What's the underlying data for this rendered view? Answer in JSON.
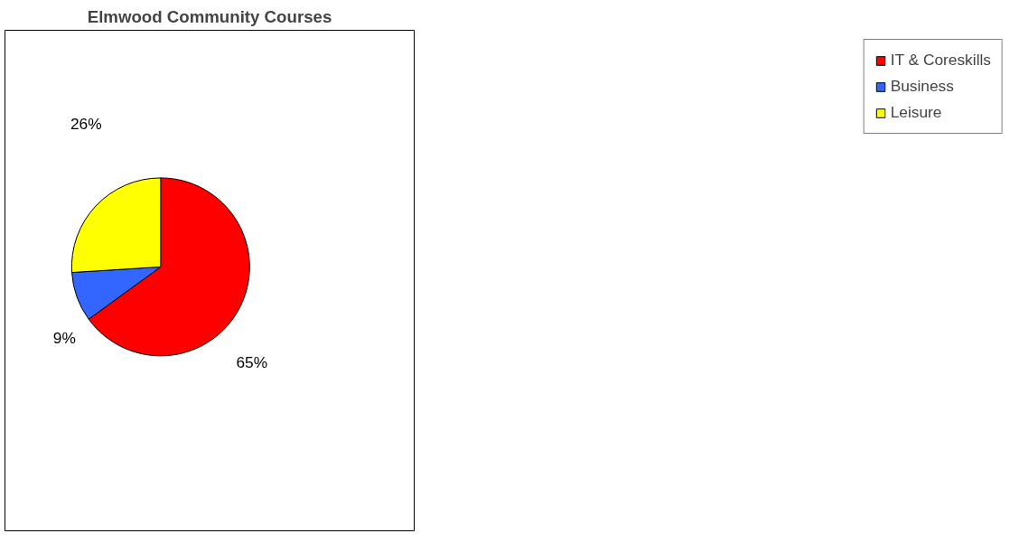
{
  "chart_data": {
    "type": "pie",
    "title": "Elmwood Community Courses",
    "categories": [
      "IT & Coreskills",
      "Business",
      "Leisure"
    ],
    "values": [
      65,
      9,
      26
    ],
    "colors": [
      "#ff0000",
      "#3366ff",
      "#ffff00"
    ],
    "value_labels": [
      "65%",
      "9%",
      "26%"
    ],
    "legend": "right"
  }
}
